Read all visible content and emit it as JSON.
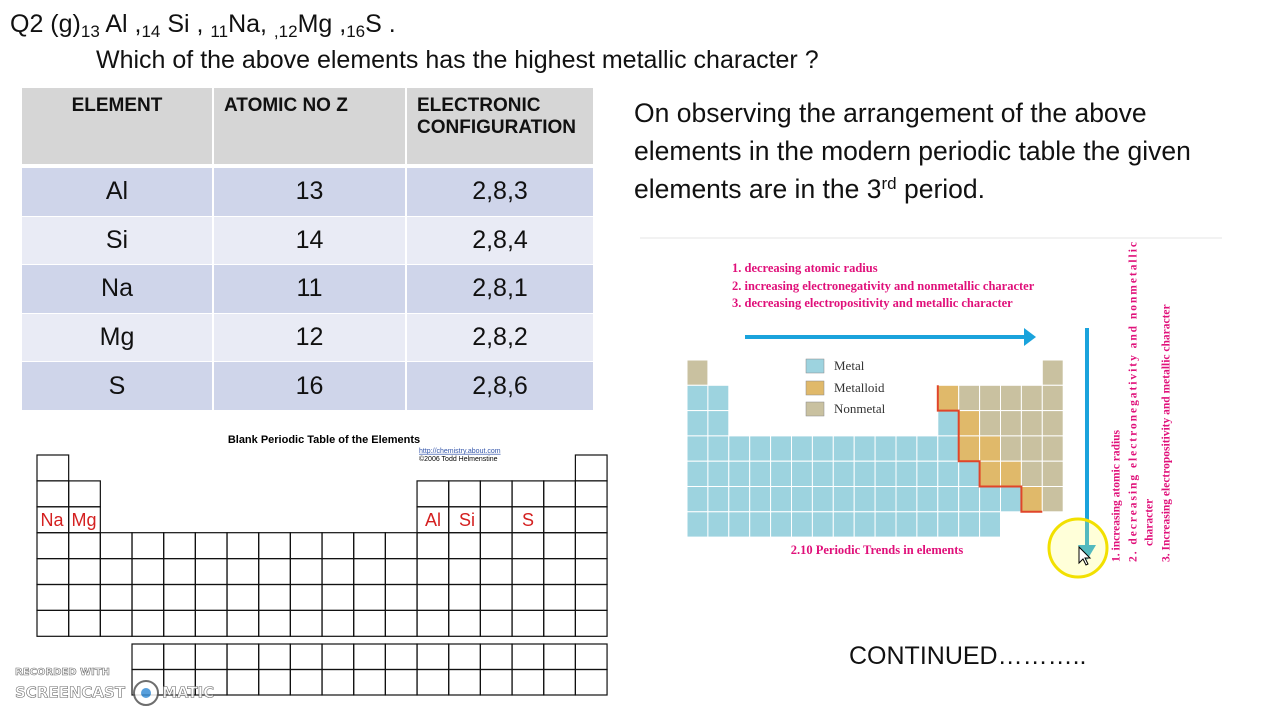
{
  "question": {
    "prefix": "Q2 (g)",
    "items": [
      {
        "sub": "13",
        "text": " Al ,"
      },
      {
        "sub": "14",
        "text": " Si , "
      },
      {
        "sub": "11",
        "text": "Na, "
      },
      {
        "sub": ",12",
        "text": "Mg ,"
      },
      {
        "sub": "16",
        "text": "S ."
      }
    ],
    "ask": "Which of the above elements has the highest metallic character ?"
  },
  "table": {
    "header": [
      "ELEMENT",
      "ATOMIC NO  Z",
      "ELECTRONIC CONFIGURATION"
    ],
    "rows": [
      [
        "Al",
        13,
        "2,8,3"
      ],
      [
        "Si",
        14,
        "2,8,4"
      ],
      [
        "Na",
        11,
        "2,8,1"
      ],
      [
        "Mg",
        12,
        "2,8,2"
      ],
      [
        "S",
        16,
        "2,8,6"
      ]
    ]
  },
  "explanation": {
    "before": "On observing the arrangement of the above elements in the modern periodic table the given elements are in the 3",
    "sup": "rd",
    "after": " period."
  },
  "blank_table": {
    "title": "Blank Periodic Table of the Elements",
    "link": "http://chemistry.about.com",
    "copyright": "©2006 Todd Helmenstine",
    "labels": [
      "Na",
      "Mg",
      "Al",
      "Si",
      "S"
    ]
  },
  "trends_figure": {
    "row_trends": [
      "1. decreasing atomic radius",
      "2. increasing electronegativity and nonmetallic character",
      "3. decreasing electropositivity and metallic character"
    ],
    "legend": [
      "Metal",
      "Metalloid",
      "Nonmetal"
    ],
    "column_trends": [
      "1. increasing atomic radius",
      "2. decreasing electronegativity and nonmetallic",
      "character",
      "3. Increasing electropositivity and metallic character"
    ],
    "caption": "2.10 Periodic Trends in elements"
  },
  "footer": "CONTINUED………..",
  "watermark": {
    "line1": "RECORDED WITH",
    "brand_left": "SCREENCAST",
    "brand_right": "MATIC"
  }
}
